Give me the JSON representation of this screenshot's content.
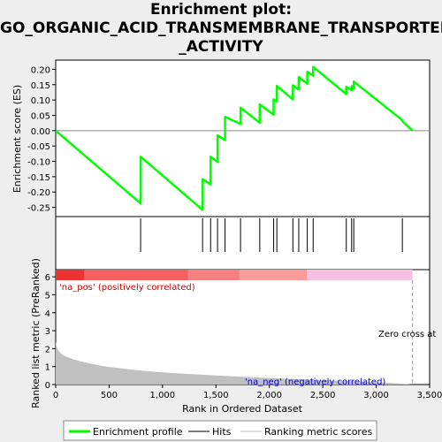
{
  "title_lines": [
    "Enrichment plot:",
    "GO_ORGANIC_ACID_TRANSMEMBRANE_TRANSPORTER",
    "_ACTIVITY"
  ],
  "chart_data": {
    "type": "line",
    "title": "Enrichment plot: GO_ORGANIC_ACID_TRANSMEMBRANE_TRANSPORTER_ACTIVITY",
    "top_panel": {
      "ylabel": "Enrichment score (ES)",
      "ylim": [
        -0.28,
        0.23
      ],
      "yticks": [
        -0.25,
        -0.2,
        -0.15,
        -0.1,
        -0.05,
        0.0,
        0.05,
        0.1,
        0.15,
        0.2
      ],
      "ytick_labels": [
        "-0.25",
        "-0.20",
        "-0.15",
        "-0.10",
        "-0.05",
        "0.00",
        "0.05",
        "0.10",
        "0.15",
        "0.20"
      ],
      "series": [
        {
          "name": "Enrichment profile",
          "color": "#00ff00",
          "x": [
            0,
            795,
            795,
            1375,
            1375,
            1450,
            1450,
            1515,
            1515,
            1585,
            1585,
            1730,
            1730,
            1910,
            1910,
            2040,
            2040,
            2070,
            2070,
            2220,
            2220,
            2275,
            2275,
            2355,
            2355,
            2410,
            2410,
            2720,
            2720,
            2770,
            2770,
            2790,
            2790,
            3245,
            3245,
            3340
          ],
          "y": [
            0.0,
            -0.237,
            -0.085,
            -0.258,
            -0.158,
            -0.175,
            -0.085,
            -0.102,
            -0.015,
            -0.031,
            0.045,
            0.022,
            0.075,
            0.026,
            0.086,
            0.052,
            0.102,
            0.095,
            0.146,
            0.102,
            0.148,
            0.134,
            0.175,
            0.153,
            0.192,
            0.179,
            0.208,
            0.119,
            0.143,
            0.132,
            0.145,
            0.138,
            0.16,
            0.034,
            0.031,
            0.0
          ]
        }
      ]
    },
    "hits": {
      "name": "Hits",
      "x": [
        795,
        1375,
        1450,
        1515,
        1585,
        1730,
        1910,
        2040,
        2070,
        2220,
        2275,
        2355,
        2410,
        2720,
        2770,
        2790,
        3245
      ]
    },
    "bottom_panel": {
      "ylabel": "Ranked list metric (PreRanked)",
      "xlabel": "Rank in Ordered Dataset",
      "ylim": [
        0,
        6.4
      ],
      "yticks": [
        0,
        1,
        2,
        3,
        4,
        5,
        6
      ],
      "ytick_labels": [
        "0",
        "1",
        "2",
        "3",
        "4",
        "5",
        "6"
      ],
      "series_name": "Ranking metric scores",
      "series_color": "#c0c0c0",
      "x": [
        0,
        5,
        15,
        30,
        50,
        80,
        120,
        170,
        230,
        300,
        400,
        500,
        650,
        800,
        1000,
        1200,
        1500,
        1800,
        2100,
        2400,
        2700,
        3000,
        3200,
        3340
      ],
      "y": [
        2.4,
        2.2,
        2.0,
        1.85,
        1.72,
        1.6,
        1.5,
        1.4,
        1.3,
        1.2,
        1.08,
        0.98,
        0.87,
        0.78,
        0.68,
        0.6,
        0.5,
        0.42,
        0.34,
        0.27,
        0.2,
        0.13,
        0.07,
        0.0
      ],
      "zero_cross_x": 3340,
      "zero_cross_label": "Zero cross at",
      "pos_label": "'na_pos' (positively correlated)",
      "neg_label": "'na_neg' (negatively correlated)"
    },
    "xlim": [
      0,
      3500
    ],
    "xticks": [
      0,
      500,
      1000,
      1500,
      2000,
      2500,
      3000,
      3500
    ],
    "xtick_labels": [
      "0",
      "500",
      "1,000",
      "1,500",
      "2,000",
      "2,500",
      "3,000",
      "3,500"
    ],
    "colorbar": {
      "segments": [
        {
          "x0": 0,
          "x1": 270,
          "color": "#ee3333"
        },
        {
          "x0": 270,
          "x1": 1240,
          "color": "#f56060"
        },
        {
          "x0": 1240,
          "x1": 1720,
          "color": "#f88080"
        },
        {
          "x0": 1720,
          "x1": 2350,
          "color": "#fa9a9a"
        },
        {
          "x0": 2350,
          "x1": 3340,
          "color": "#f8c0e0"
        }
      ]
    },
    "legend": {
      "position": "bottom",
      "entries": [
        "Enrichment profile",
        "Hits",
        "Ranking metric scores"
      ]
    }
  }
}
